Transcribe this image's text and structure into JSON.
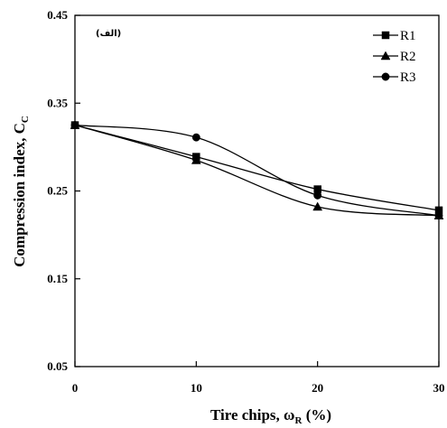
{
  "chart_data": {
    "type": "line",
    "title": "",
    "panel_label": "(الف)",
    "xlabel_main": "Tire chips, ω",
    "xlabel_sub": "R",
    "xlabel_unit": " (%)",
    "ylabel_main": "Compression index, C",
    "ylabel_sub": "C",
    "x": [
      0,
      10,
      20,
      30
    ],
    "xlim": [
      0,
      30
    ],
    "ylim": [
      0.05,
      0.45
    ],
    "xticks": [
      "0",
      "10",
      "20",
      "30"
    ],
    "yticks": [
      "0.05",
      "0.15",
      "0.25",
      "0.35",
      "0.45"
    ],
    "grid": false,
    "legend_position": "top-right",
    "series": [
      {
        "name": "R1",
        "marker": "square",
        "values": [
          0.325,
          0.289,
          0.252,
          0.228
        ]
      },
      {
        "name": "R2",
        "marker": "triangle",
        "values": [
          0.325,
          0.285,
          0.232,
          0.222
        ]
      },
      {
        "name": "R3",
        "marker": "circle",
        "values": [
          0.325,
          0.311,
          0.245,
          0.222
        ]
      }
    ]
  }
}
